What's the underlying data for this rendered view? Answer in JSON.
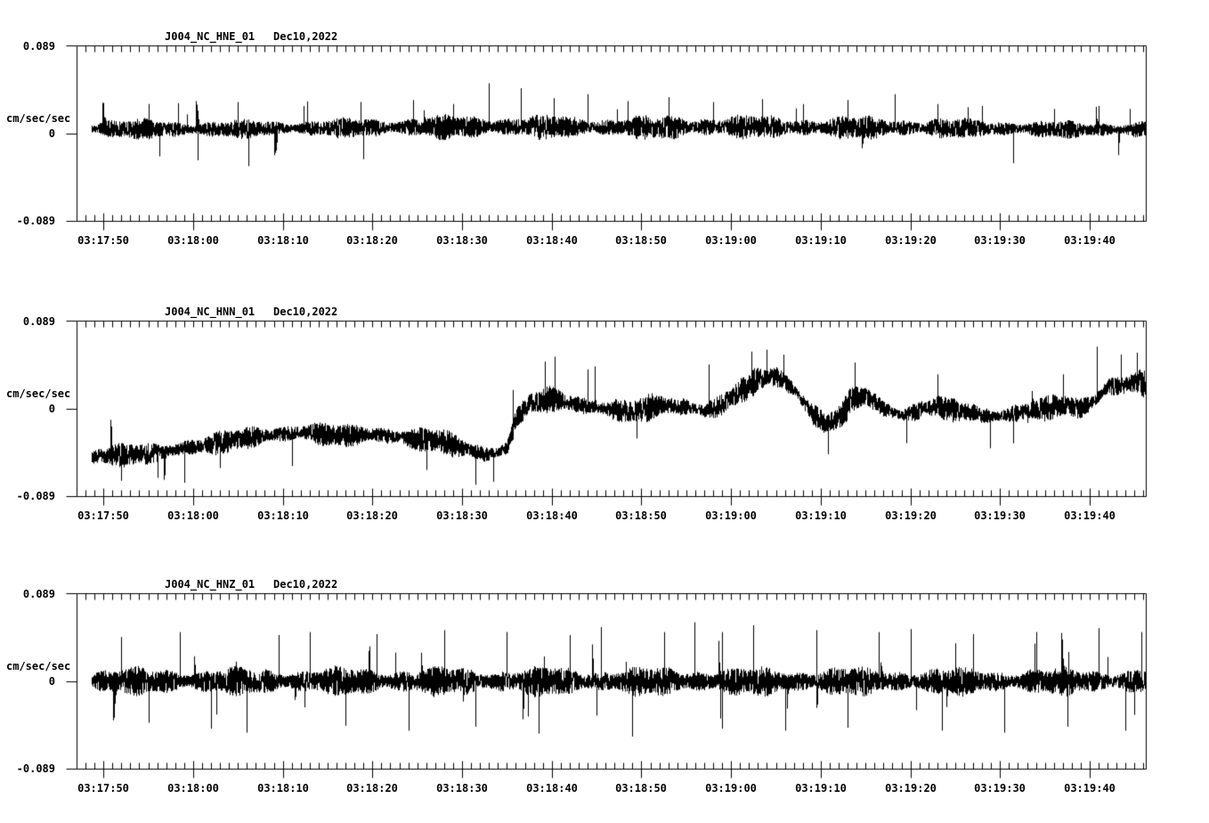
{
  "figure": {
    "background_color": "#ffffff",
    "stroke_color": "#000000",
    "kind": "three-channel strong-motion seismogram acceleration traces",
    "y_axis_unit": "cm/sec/sec",
    "y_tick_labels": {
      "top": "0.089",
      "zero": "0",
      "bottom": "-0.089"
    },
    "x_tick_labels": [
      "03:17:50",
      "03:18:00",
      "03:18:10",
      "03:18:20",
      "03:18:30",
      "03:18:40",
      "03:18:50",
      "03:19:00",
      "03:19:10",
      "03:19:20",
      "03:19:30",
      "03:19:40"
    ],
    "x_axis": {
      "start_clock": "03:17:47",
      "end_clock": "03:19:46",
      "tick_label_seconds_after_031700": [
        50,
        60,
        70,
        80,
        90,
        100,
        110,
        120,
        130,
        140,
        150,
        160
      ],
      "minor_tick_interval_s": 1,
      "major_tick_interval_s": 10
    }
  },
  "chart_data": [
    {
      "type": "line",
      "title": "J004_NC_HNE_01",
      "date": "Dec10,2022",
      "station": "J004",
      "network": "NC",
      "channel": "HNE",
      "location": "01",
      "ylabel": "cm/sec/sec",
      "ylim": [
        -0.089,
        0.089
      ],
      "yticks": [
        0.089,
        0,
        -0.089
      ],
      "x_range_s": [
        47.0,
        166.25
      ],
      "data_span_s": [
        48.7,
        166.1
      ],
      "grid": false,
      "legend": "none",
      "synth": {
        "seed": 11,
        "spike_prob": 0.0025,
        "pos_bias": 0.75,
        "mean_keypoints": [
          [
            48.7,
            0.005
          ],
          [
            60,
            0.004
          ],
          [
            70,
            0.005
          ],
          [
            80,
            0.006
          ],
          [
            90,
            0.007
          ],
          [
            100,
            0.007
          ],
          [
            110,
            0.006
          ],
          [
            120,
            0.007
          ],
          [
            130,
            0.006
          ],
          [
            140,
            0.006
          ],
          [
            150,
            0.005
          ],
          [
            160,
            0.004
          ],
          [
            166.1,
            0.004
          ]
        ],
        "noise_amp_keypoints": [
          [
            48.7,
            0.01
          ],
          [
            60,
            0.009
          ],
          [
            75,
            0.009
          ],
          [
            85,
            0.011
          ],
          [
            95,
            0.012
          ],
          [
            105,
            0.011
          ],
          [
            115,
            0.012
          ],
          [
            125,
            0.011
          ],
          [
            135,
            0.011
          ],
          [
            145,
            0.01
          ],
          [
            152,
            0.009
          ],
          [
            158,
            0.008
          ],
          [
            166.1,
            0.009
          ]
        ],
        "spikes": [
          [
            55,
            0.03
          ],
          [
            60.5,
            -0.027
          ],
          [
            65,
            0.032
          ],
          [
            66.2,
            -0.033
          ],
          [
            72.3,
            0.028
          ],
          [
            79,
            -0.026
          ],
          [
            84.5,
            0.034
          ],
          [
            89,
            0.03
          ],
          [
            93,
            0.051
          ],
          [
            96.5,
            0.046
          ],
          [
            100.2,
            0.036
          ],
          [
            104,
            0.04
          ],
          [
            108.5,
            0.033
          ],
          [
            113,
            0.037
          ],
          [
            118,
            0.032
          ],
          [
            123.5,
            0.035
          ],
          [
            128,
            0.03
          ],
          [
            133,
            0.034
          ],
          [
            138.2,
            0.04
          ],
          [
            143,
            0.03
          ],
          [
            148,
            0.028
          ],
          [
            151.5,
            -0.03
          ],
          [
            156,
            0.025
          ],
          [
            161,
            0.028
          ],
          [
            164.5,
            0.025
          ]
        ]
      }
    },
    {
      "type": "line",
      "title": "J004_NC_HNN_01",
      "date": "Dec10,2022",
      "station": "J004",
      "network": "NC",
      "channel": "HNN",
      "location": "01",
      "ylabel": "cm/sec/sec",
      "ylim": [
        -0.089,
        0.089
      ],
      "yticks": [
        0.089,
        0,
        -0.089
      ],
      "x_range_s": [
        47.0,
        166.25
      ],
      "data_span_s": [
        48.7,
        166.1
      ],
      "grid": false,
      "legend": "none",
      "synth": {
        "seed": 22,
        "spike_prob": 0.002,
        "pos_bias": 0.5,
        "mean_keypoints": [
          [
            48.7,
            -0.048
          ],
          [
            55,
            -0.046
          ],
          [
            62,
            -0.036
          ],
          [
            68,
            -0.027
          ],
          [
            72,
            -0.024
          ],
          [
            76,
            -0.027
          ],
          [
            80,
            -0.026
          ],
          [
            84,
            -0.03
          ],
          [
            88,
            -0.033
          ],
          [
            90,
            -0.04
          ],
          [
            93,
            -0.047
          ],
          [
            95,
            -0.04
          ],
          [
            96,
            -0.01
          ],
          [
            97.5,
            0.006
          ],
          [
            100,
            0.01
          ],
          [
            103,
            0.004
          ],
          [
            106,
            0.0
          ],
          [
            109,
            -0.003
          ],
          [
            112,
            0.004
          ],
          [
            115,
            0.002
          ],
          [
            117,
            -0.002
          ],
          [
            119,
            0.004
          ],
          [
            121,
            0.018
          ],
          [
            123,
            0.03
          ],
          [
            125,
            0.033
          ],
          [
            127,
            0.02
          ],
          [
            129,
            -0.005
          ],
          [
            130.5,
            -0.015
          ],
          [
            132,
            -0.01
          ],
          [
            133.5,
            0.01
          ],
          [
            135,
            0.013
          ],
          [
            137,
            0.0
          ],
          [
            139,
            -0.007
          ],
          [
            141,
            -0.002
          ],
          [
            143,
            0.003
          ],
          [
            145,
            -0.002
          ],
          [
            147,
            -0.004
          ],
          [
            149,
            -0.008
          ],
          [
            151,
            -0.006
          ],
          [
            153,
            -0.002
          ],
          [
            155,
            0.0
          ],
          [
            157,
            0.004
          ],
          [
            159,
            0.0
          ],
          [
            160.5,
            0.008
          ],
          [
            162,
            0.022
          ],
          [
            164,
            0.024
          ],
          [
            165.5,
            0.028
          ],
          [
            166.1,
            0.024
          ]
        ],
        "noise_amp_keypoints": [
          [
            48.7,
            0.011
          ],
          [
            80,
            0.011
          ],
          [
            90,
            0.012
          ],
          [
            96,
            0.01
          ],
          [
            100,
            0.012
          ],
          [
            120,
            0.012
          ],
          [
            126,
            0.013
          ],
          [
            140,
            0.011
          ],
          [
            155,
            0.011
          ],
          [
            160,
            0.012
          ],
          [
            166.1,
            0.013
          ]
        ],
        "spikes": [
          [
            52,
            -0.073
          ],
          [
            56,
            -0.07
          ],
          [
            59,
            -0.075
          ],
          [
            63,
            -0.06
          ],
          [
            71,
            -0.058
          ],
          [
            86,
            -0.062
          ],
          [
            91.5,
            -0.077
          ],
          [
            93.5,
            -0.074
          ],
          [
            99.2,
            0.048
          ],
          [
            100.3,
            0.053
          ],
          [
            104,
            0.04
          ],
          [
            109.5,
            -0.03
          ],
          [
            117.5,
            0.045
          ],
          [
            122.3,
            0.058
          ],
          [
            124,
            0.06
          ],
          [
            125.8,
            0.055
          ],
          [
            130.8,
            -0.046
          ],
          [
            133.8,
            0.047
          ],
          [
            139.5,
            -0.035
          ],
          [
            143,
            0.035
          ],
          [
            148.9,
            -0.04
          ],
          [
            151.5,
            -0.035
          ],
          [
            157,
            0.035
          ],
          [
            160.8,
            0.063
          ],
          [
            163.5,
            0.055
          ],
          [
            165.3,
            0.057
          ]
        ]
      }
    },
    {
      "type": "line",
      "title": "J004_NC_HNZ_01",
      "date": "Dec10,2022",
      "station": "J004",
      "network": "NC",
      "channel": "HNZ",
      "location": "01",
      "ylabel": "cm/sec/sec",
      "ylim": [
        -0.089,
        0.089
      ],
      "yticks": [
        0.089,
        0,
        -0.089
      ],
      "x_range_s": [
        47.0,
        166.25
      ],
      "data_span_s": [
        48.7,
        166.1
      ],
      "grid": false,
      "legend": "none",
      "synth": {
        "seed": 33,
        "spike_prob": 0.005,
        "pos_bias": 0.5,
        "mean_keypoints": [
          [
            48.7,
            0.0
          ],
          [
            166.1,
            0.0
          ]
        ],
        "noise_amp_keypoints": [
          [
            48.7,
            0.013
          ],
          [
            100,
            0.014
          ],
          [
            166.1,
            0.013
          ]
        ],
        "spikes": [
          [
            52,
            0.045
          ],
          [
            55,
            -0.042
          ],
          [
            58.5,
            0.05
          ],
          [
            62,
            -0.048
          ],
          [
            66,
            -0.052
          ],
          [
            69.5,
            0.047
          ],
          [
            73,
            0.05
          ],
          [
            77,
            -0.045
          ],
          [
            80.5,
            0.048
          ],
          [
            84,
            -0.05
          ],
          [
            88,
            0.052
          ],
          [
            91.5,
            -0.046
          ],
          [
            95,
            0.05
          ],
          [
            98.5,
            -0.053
          ],
          [
            102,
            0.047
          ],
          [
            105.5,
            0.055
          ],
          [
            109,
            -0.056
          ],
          [
            112.5,
            0.05
          ],
          [
            115.9,
            0.06
          ],
          [
            119,
            -0.048
          ],
          [
            122.5,
            0.057
          ],
          [
            126,
            -0.05
          ],
          [
            129.5,
            0.052
          ],
          [
            133,
            -0.047
          ],
          [
            136.5,
            0.05
          ],
          [
            140,
            0.053
          ],
          [
            143.5,
            -0.05
          ],
          [
            147,
            0.048
          ],
          [
            150.5,
            -0.052
          ],
          [
            154,
            0.05
          ],
          [
            157.5,
            -0.046
          ],
          [
            161,
            0.054
          ],
          [
            164,
            -0.05
          ],
          [
            165.8,
            0.05
          ]
        ]
      }
    }
  ]
}
